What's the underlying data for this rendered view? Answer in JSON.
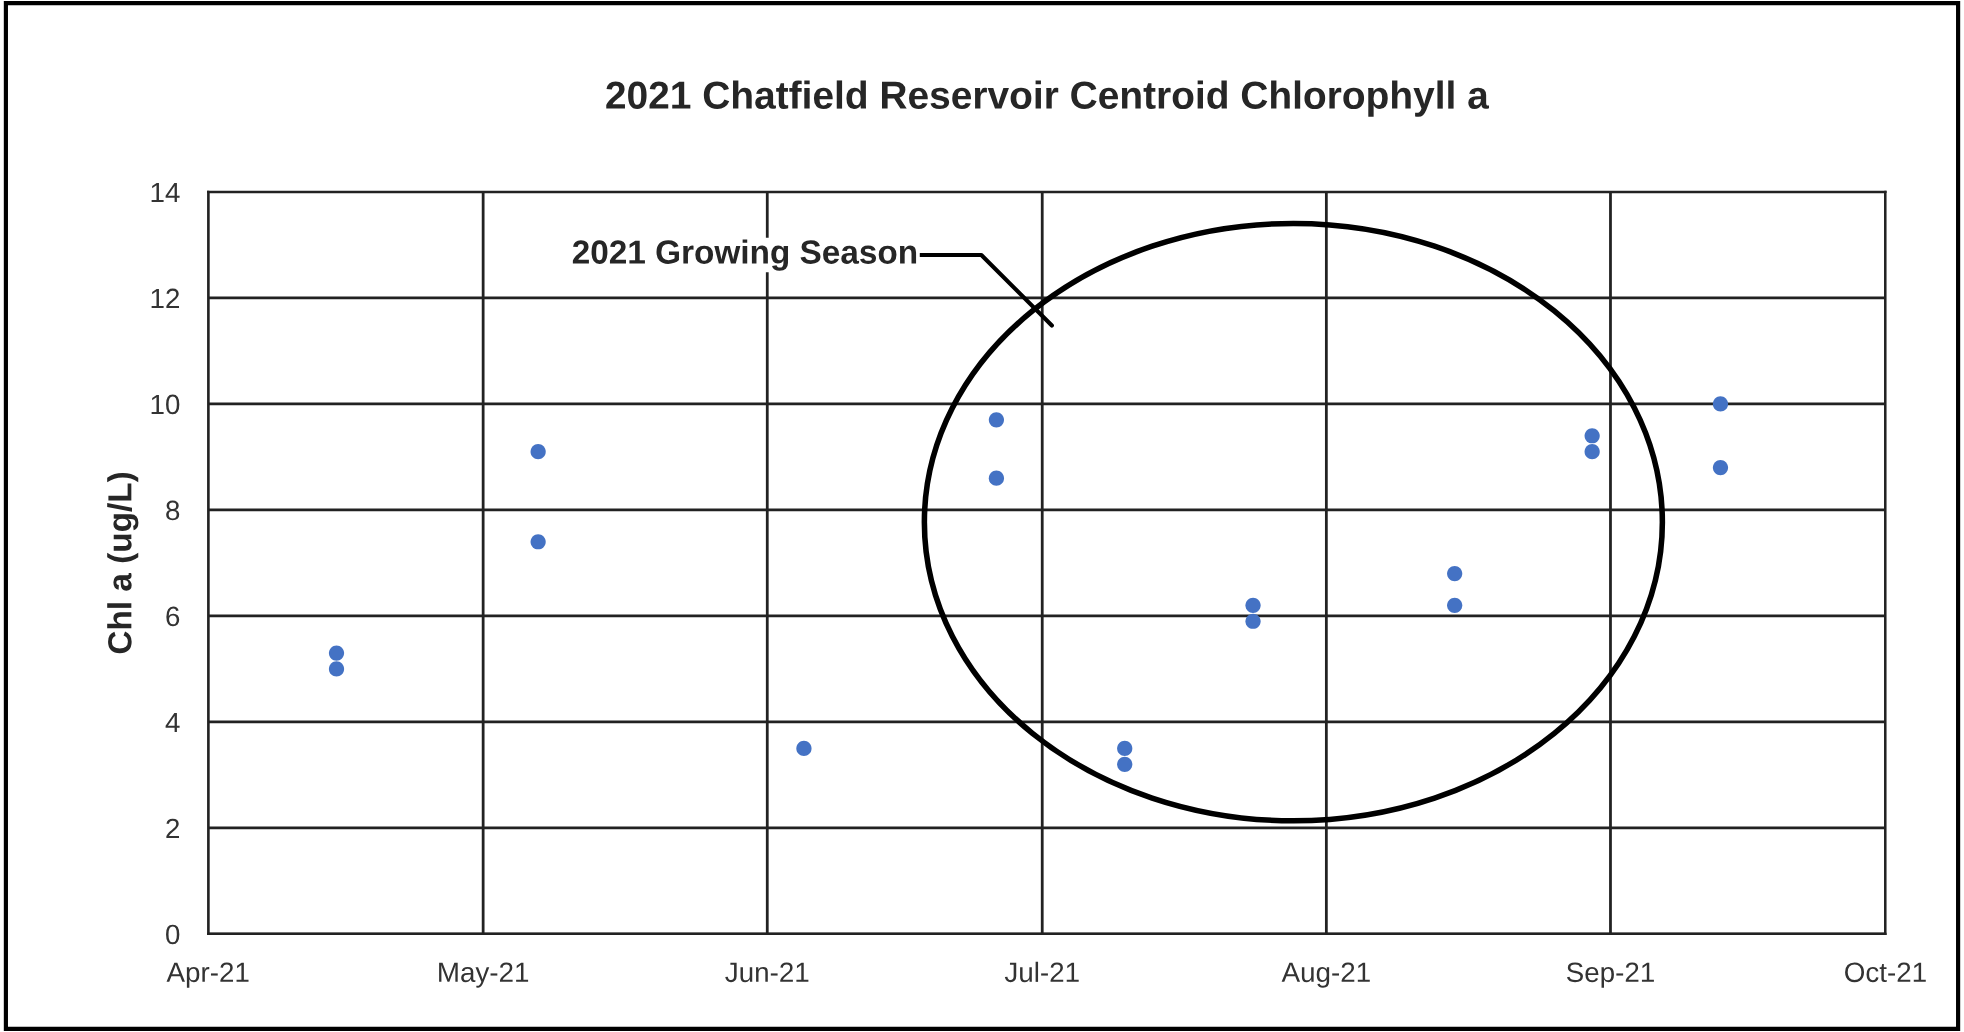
{
  "chart_data": {
    "type": "scatter",
    "title": "2021 Chatfield Reservoir Centroid Chlorophyll a",
    "ylabel": "Chl a (ug/L)",
    "x": [
      "2021-04-15",
      "2021-04-15",
      "2021-05-07",
      "2021-05-07",
      "2021-06-05",
      "2021-06-26",
      "2021-06-26",
      "2021-07-10",
      "2021-07-10",
      "2021-07-24",
      "2021-07-24",
      "2021-08-15",
      "2021-08-15",
      "2021-08-30",
      "2021-08-30",
      "2021-09-13",
      "2021-09-13"
    ],
    "series": [
      {
        "color": "#4472c4",
        "values": [
          5.3,
          5.0,
          9.1,
          7.4,
          3.5,
          9.7,
          8.6,
          3.5,
          3.2,
          6.2,
          5.9,
          6.8,
          6.2,
          9.4,
          9.1,
          10.0,
          8.8
        ]
      }
    ],
    "xlim": [
      "2021-04-01",
      "2021-10-01"
    ],
    "xticks": [
      {
        "value": "2021-04-01",
        "label": "Apr-21"
      },
      {
        "value": "2021-05-01",
        "label": "May-21"
      },
      {
        "value": "2021-06-01",
        "label": "Jun-21"
      },
      {
        "value": "2021-07-01",
        "label": "Jul-21"
      },
      {
        "value": "2021-08-01",
        "label": "Aug-21"
      },
      {
        "value": "2021-09-01",
        "label": "Sep-21"
      },
      {
        "value": "2021-10-01",
        "label": "Oct-21"
      }
    ],
    "ylim": [
      0,
      14
    ],
    "yticks": [
      0,
      2,
      4,
      6,
      8,
      10,
      12,
      14
    ],
    "grid": true,
    "legend": false,
    "marker": "circle",
    "annotations": [
      "2021 Growing Season"
    ]
  }
}
